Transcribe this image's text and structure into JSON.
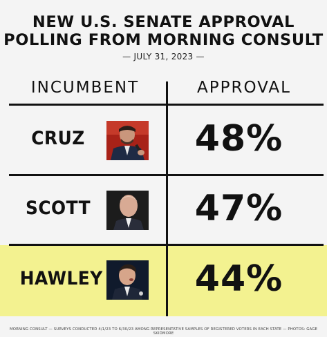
{
  "title_line1": "NEW U.S. SENATE APPROVAL",
  "title_line2": "POLLING FROM MORNING CONSULT",
  "date": "— JULY 31, 2023 —",
  "headers": {
    "incumbent": "INCUMBENT",
    "approval": "APPROVAL"
  },
  "rows": [
    {
      "name": "CRUZ",
      "approval": "48%"
    },
    {
      "name": "SCOTT",
      "approval": "47%"
    },
    {
      "name": "HAWLEY",
      "approval": "44%"
    }
  ],
  "colors": {
    "highlight": "#f3f290",
    "background": "#f4f4f4",
    "ink": "#111111"
  },
  "footer": "MORNING CONSULT — SURVEYS CONDUCTED 4/1/23 TO 6/30/23 AMONG REPRESENTATIVE SAMPLES OF REGISTERED VOTERS IN EACH STATE — PHOTOS: GAGE SKIDMORE"
}
